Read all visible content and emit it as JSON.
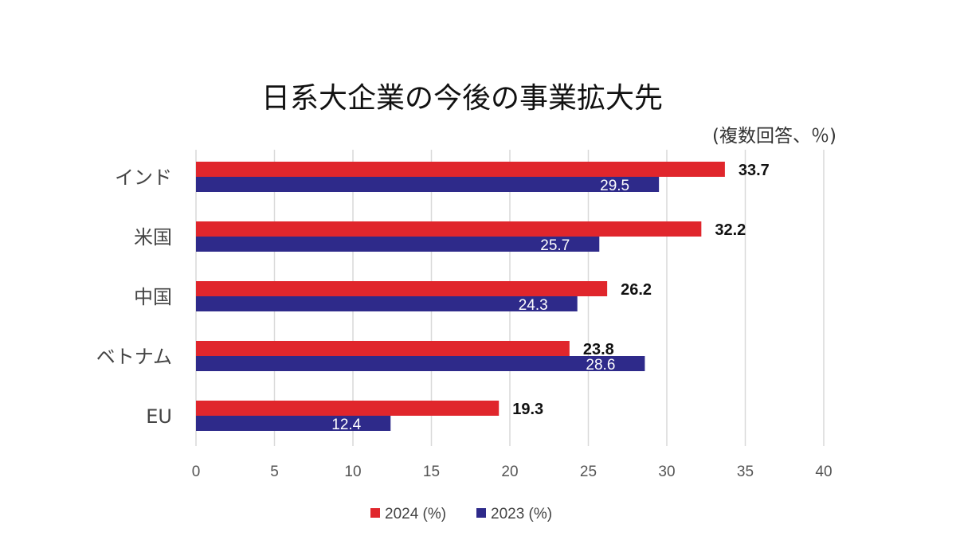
{
  "chart_data": {
    "type": "bar",
    "orientation": "horizontal",
    "title": "日系大企業の今後の事業拡大先",
    "subtitle": "(複数回答、％)",
    "categories": [
      "インド",
      "米国",
      "中国",
      "ベトナム",
      "EU"
    ],
    "series": [
      {
        "name": "2024 (%)",
        "color": "#e0262c",
        "values": [
          33.7,
          32.2,
          26.2,
          23.8,
          19.3
        ]
      },
      {
        "name": "2023 (%)",
        "color": "#2e2a8a",
        "values": [
          29.5,
          25.7,
          24.3,
          28.6,
          12.4
        ]
      }
    ],
    "xlim": [
      0,
      40
    ],
    "xticks": [
      0,
      5,
      10,
      15,
      20,
      25,
      30,
      35,
      40
    ],
    "grid": "vertical",
    "legend_position": "bottom"
  }
}
